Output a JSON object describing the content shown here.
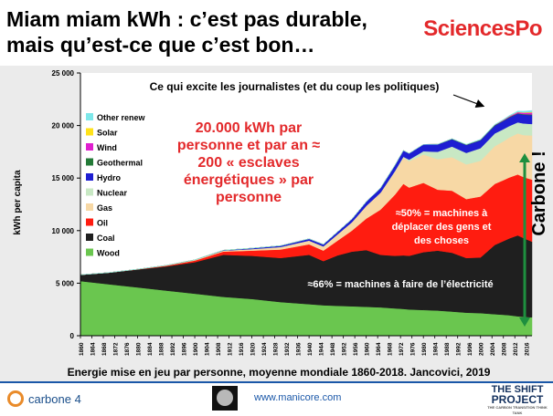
{
  "slide": {
    "title_line1": "Miam miam kWh : c’est pas durable,",
    "title_line2": "mais qu’est-ce que c’est bon…",
    "logo": "SciencesPo",
    "caption": "Energie mise en jeu par personne, moyenne mondiale 1860-2018. Jancovici, 2019"
  },
  "annotations": {
    "journalists": "Ce qui excite les journalistes (et du coup les politiques)",
    "slaves": [
      "20.000 kWh par",
      "personne et par an ≈",
      "200 « esclaves",
      "énergétiques » par",
      "personne"
    ],
    "machines_move": [
      "≈50% = machines à",
      "déplacer des gens et",
      "des choses"
    ],
    "machines_elec": "≈66% = machines à faire de l’électricité",
    "carbone": "Carbone !"
  },
  "footer": {
    "carbone4": "carbone 4",
    "website": "www.manicore.com",
    "shift_line1": "THE SHIFT",
    "shift_line2": "PROJECT",
    "shift_tagline": "THE CARBON TRANSITION THINK TANK",
    "moon_icon": "moon-image"
  },
  "colors": {
    "title_red": "#e3292b",
    "carbone_green": "#1e8f3f",
    "footer_blue": "#1a57a8"
  },
  "chart_data": {
    "type": "area",
    "stacked": true,
    "ylabel": "kWh per capita",
    "xlabel": "",
    "xlim": [
      1860,
      2018
    ],
    "ylim": [
      0,
      25000
    ],
    "yticks": [
      0,
      5000,
      10000,
      15000,
      20000,
      25000
    ],
    "ytick_labels": [
      "0",
      "5 000",
      "10 000",
      "15 000",
      "20 000",
      "25 000"
    ],
    "xticks": [
      1860,
      1864,
      1868,
      1872,
      1876,
      1880,
      1884,
      1888,
      1892,
      1896,
      1900,
      1904,
      1908,
      1912,
      1916,
      1920,
      1924,
      1928,
      1932,
      1936,
      1940,
      1944,
      1948,
      1952,
      1956,
      1960,
      1964,
      1968,
      1972,
      1976,
      1980,
      1984,
      1988,
      1992,
      1996,
      2000,
      2004,
      2008,
      2012,
      2016
    ],
    "x": [
      1860,
      1870,
      1880,
      1890,
      1900,
      1910,
      1920,
      1930,
      1940,
      1945,
      1950,
      1955,
      1960,
      1965,
      1970,
      1973,
      1975,
      1980,
      1985,
      1990,
      1995,
      2000,
      2005,
      2008,
      2010,
      2013,
      2015,
      2018
    ],
    "series": [
      {
        "name": "Wood",
        "color": "#6ac64f",
        "values": [
          5200,
          4900,
          4600,
          4300,
          4000,
          3700,
          3500,
          3200,
          3000,
          2900,
          2850,
          2800,
          2750,
          2700,
          2600,
          2550,
          2500,
          2450,
          2400,
          2300,
          2200,
          2150,
          2050,
          2000,
          1950,
          1850,
          1800,
          1750
        ]
      },
      {
        "name": "Coal",
        "color": "#1f1f1f",
        "values": [
          600,
          1100,
          1700,
          2300,
          3000,
          4000,
          4100,
          4200,
          4700,
          4200,
          4800,
          5200,
          5400,
          5000,
          5000,
          5100,
          5100,
          5500,
          5700,
          5600,
          5200,
          5300,
          6600,
          7000,
          7300,
          7700,
          7500,
          7200
        ]
      },
      {
        "name": "Oil",
        "color": "#ff1c10",
        "values": [
          0,
          10,
          20,
          60,
          150,
          300,
          500,
          800,
          1000,
          1000,
          1400,
          2000,
          3000,
          4300,
          5800,
          6800,
          6500,
          6600,
          5800,
          5900,
          5600,
          5800,
          5800,
          5800,
          5800,
          5800,
          5800,
          5900
        ]
      },
      {
        "name": "Gas",
        "color": "#f7d8a5",
        "values": [
          0,
          0,
          10,
          30,
          60,
          100,
          150,
          250,
          350,
          400,
          600,
          800,
          1200,
          1600,
          2200,
          2500,
          2500,
          2700,
          2900,
          3200,
          3300,
          3400,
          3600,
          3700,
          3800,
          3900,
          4000,
          4200
        ]
      },
      {
        "name": "Nuclear",
        "color": "#c8e8c4",
        "values": [
          0,
          0,
          0,
          0,
          0,
          0,
          0,
          0,
          0,
          0,
          0,
          0,
          0,
          10,
          50,
          80,
          150,
          300,
          700,
          1000,
          1100,
          1200,
          1200,
          1150,
          1100,
          1050,
          1100,
          1100
        ]
      },
      {
        "name": "Hydro",
        "color": "#1e1ed2",
        "values": [
          0,
          0,
          0,
          0,
          10,
          30,
          80,
          120,
          180,
          200,
          250,
          300,
          400,
          450,
          550,
          600,
          600,
          650,
          700,
          700,
          750,
          750,
          750,
          780,
          800,
          820,
          830,
          840
        ]
      },
      {
        "name": "Geothermal",
        "color": "#237a37",
        "values": [
          0,
          0,
          0,
          0,
          0,
          0,
          0,
          0,
          0,
          0,
          0,
          0,
          0,
          0,
          0,
          0,
          0,
          0,
          20,
          40,
          40,
          45,
          50,
          50,
          55,
          55,
          60,
          60
        ]
      },
      {
        "name": "Wind",
        "color": "#e01fcf",
        "values": [
          0,
          0,
          0,
          0,
          0,
          0,
          0,
          0,
          0,
          0,
          0,
          0,
          0,
          0,
          0,
          0,
          0,
          0,
          0,
          0,
          5,
          10,
          25,
          50,
          70,
          100,
          130,
          180
        ]
      },
      {
        "name": "Solar",
        "color": "#ffe21a",
        "values": [
          0,
          0,
          0,
          0,
          0,
          0,
          0,
          0,
          0,
          0,
          0,
          0,
          0,
          0,
          0,
          0,
          0,
          0,
          0,
          0,
          0,
          0,
          0,
          5,
          10,
          25,
          40,
          70
        ]
      },
      {
        "name": "Other renew",
        "color": "#7ee8ea",
        "values": [
          0,
          0,
          0,
          0,
          0,
          0,
          0,
          0,
          0,
          0,
          0,
          0,
          0,
          0,
          0,
          0,
          0,
          0,
          0,
          10,
          20,
          30,
          40,
          50,
          60,
          80,
          100,
          130
        ]
      }
    ],
    "legend_placement": "top-left"
  }
}
